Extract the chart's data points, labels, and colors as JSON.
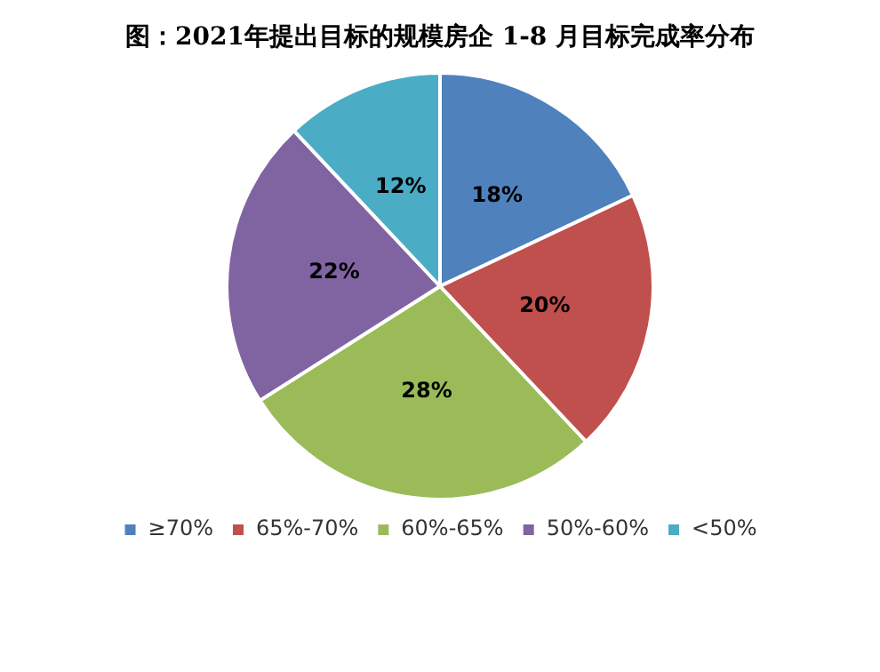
{
  "chart_data": {
    "type": "pie",
    "title": "图：2021年提出目标的规模房企 1-8 月目标完成率分布",
    "categories": [
      "≥70%",
      "65%-70%",
      "60%-65%",
      "50%-60%",
      "<50%"
    ],
    "values": [
      18,
      20,
      28,
      22,
      12
    ],
    "colors": [
      "#4f81bd",
      "#c0504d",
      "#9bbb59",
      "#8064a2",
      "#4bacc6"
    ],
    "value_labels": [
      "18%",
      "20%",
      "28%",
      "22%",
      "12%"
    ],
    "legend": "bottom"
  }
}
